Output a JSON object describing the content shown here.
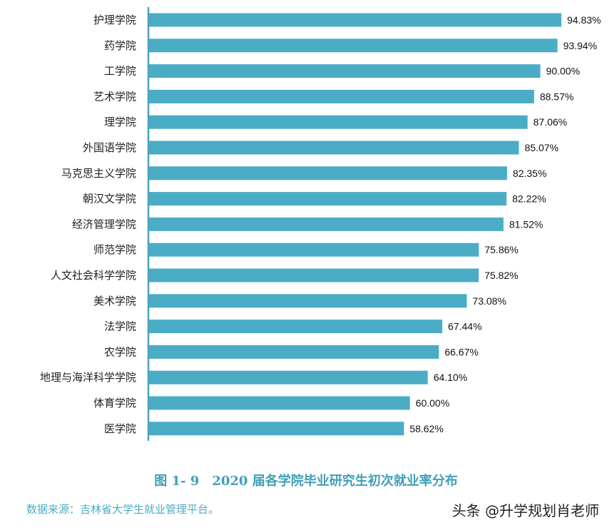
{
  "chart_data": {
    "type": "bar",
    "orientation": "horizontal",
    "title": "图 1- 9　2020 届各学院毕业研究生初次就业率分布",
    "categories": [
      "护理学院",
      "药学院",
      "工学院",
      "艺术学院",
      "理学院",
      "外国语学院",
      "马克思主义学院",
      "朝汉文学院",
      "经济管理学院",
      "师范学院",
      "人文社会科学学院",
      "美术学院",
      "法学院",
      "农学院",
      "地理与海洋科学学院",
      "体育学院",
      "医学院"
    ],
    "values": [
      94.83,
      93.94,
      90.0,
      88.57,
      87.06,
      85.07,
      82.35,
      82.22,
      81.52,
      75.86,
      75.82,
      73.08,
      67.44,
      66.67,
      64.1,
      60.0,
      58.62
    ],
    "data_labels": [
      "94.83%",
      "93.94%",
      "90.00%",
      "88.57%",
      "87.06%",
      "85.07%",
      "82.35%",
      "82.22%",
      "81.52%",
      "75.86%",
      "75.82%",
      "73.08%",
      "67.44%",
      "66.67%",
      "64.10%",
      "60.00%",
      "58.62%"
    ],
    "xlim": [
      0,
      100
    ],
    "grid": false,
    "bar_color": "#4bacc6"
  },
  "source": "数据来源：吉林省大学生就业管理平台。",
  "watermark": "头条 @升学规划肖老师"
}
